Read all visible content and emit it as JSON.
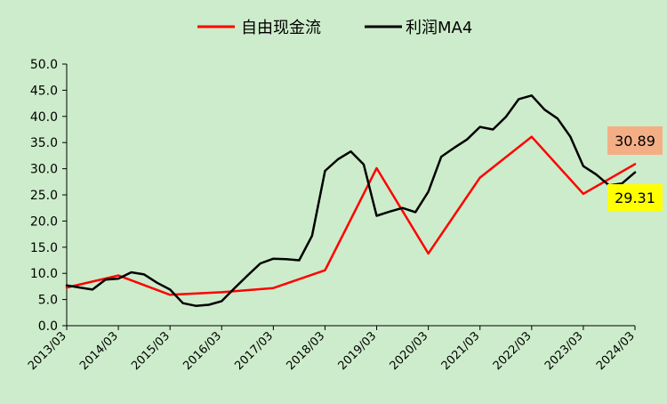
{
  "chart_data": {
    "type": "line",
    "title": "",
    "xlabel": "",
    "ylabel": "",
    "ylim": [
      0,
      50
    ],
    "yticks": [
      "0.0",
      "5.0",
      "10.0",
      "15.0",
      "20.0",
      "25.0",
      "30.0",
      "35.0",
      "40.0",
      "45.0",
      "50.0"
    ],
    "xlim": [
      "2013-03",
      "2024-03"
    ],
    "xticks": [
      "2013/03",
      "2014/03",
      "2015/03",
      "2016/03",
      "2017/03",
      "2018/03",
      "2019/03",
      "2020/03",
      "2021/03",
      "2022/03",
      "2023/03",
      "2024/03"
    ],
    "grid": false,
    "legend_position": "top",
    "series": [
      {
        "name": "自由现金流",
        "color": "#ff0000",
        "x": [
          "2013-03",
          "2014-03",
          "2015-03",
          "2016-03",
          "2017-03",
          "2018-03",
          "2019-03",
          "2020-03",
          "2021-03",
          "2022-03",
          "2023-03",
          "2024-03"
        ],
        "y": [
          7.3,
          9.6,
          5.9,
          6.4,
          7.2,
          10.6,
          30.1,
          13.8,
          28.3,
          36.1,
          25.2,
          30.89
        ]
      },
      {
        "name": "利润MA4",
        "color": "#000000",
        "x": [
          "2013-03",
          "2013-06",
          "2013-09",
          "2013-12",
          "2014-03",
          "2014-06",
          "2014-09",
          "2014-12",
          "2015-03",
          "2015-06",
          "2015-09",
          "2015-12",
          "2016-03",
          "2016-06",
          "2016-09",
          "2016-12",
          "2017-03",
          "2017-06",
          "2017-09",
          "2017-12",
          "2018-03",
          "2018-06",
          "2018-09",
          "2018-12",
          "2019-03",
          "2019-06",
          "2019-09",
          "2019-12",
          "2020-03",
          "2020-06",
          "2020-09",
          "2020-12",
          "2021-03",
          "2021-06",
          "2021-09",
          "2021-12",
          "2022-03",
          "2022-06",
          "2022-09",
          "2022-12",
          "2023-03",
          "2023-06",
          "2023-09",
          "2023-12",
          "2024-03"
        ],
        "y": [
          7.7,
          7.3,
          6.9,
          8.8,
          9.0,
          10.2,
          9.8,
          8.2,
          6.9,
          4.3,
          3.8,
          4.0,
          4.7,
          7.2,
          9.6,
          11.9,
          12.8,
          12.7,
          12.5,
          17.2,
          29.6,
          31.8,
          33.3,
          30.8,
          21.0,
          21.8,
          22.5,
          21.7,
          25.6,
          32.3,
          34.0,
          35.6,
          38.0,
          37.5,
          39.9,
          43.3,
          44.0,
          41.3,
          39.6,
          36.1,
          30.5,
          28.9,
          26.8,
          27.2,
          29.31
        ]
      }
    ],
    "annotations": [
      {
        "series": "自由现金流",
        "text": "30.89",
        "color": "#f4ae86"
      },
      {
        "series": "利润MA4",
        "text": "29.31",
        "color": "#ffff00"
      }
    ]
  }
}
